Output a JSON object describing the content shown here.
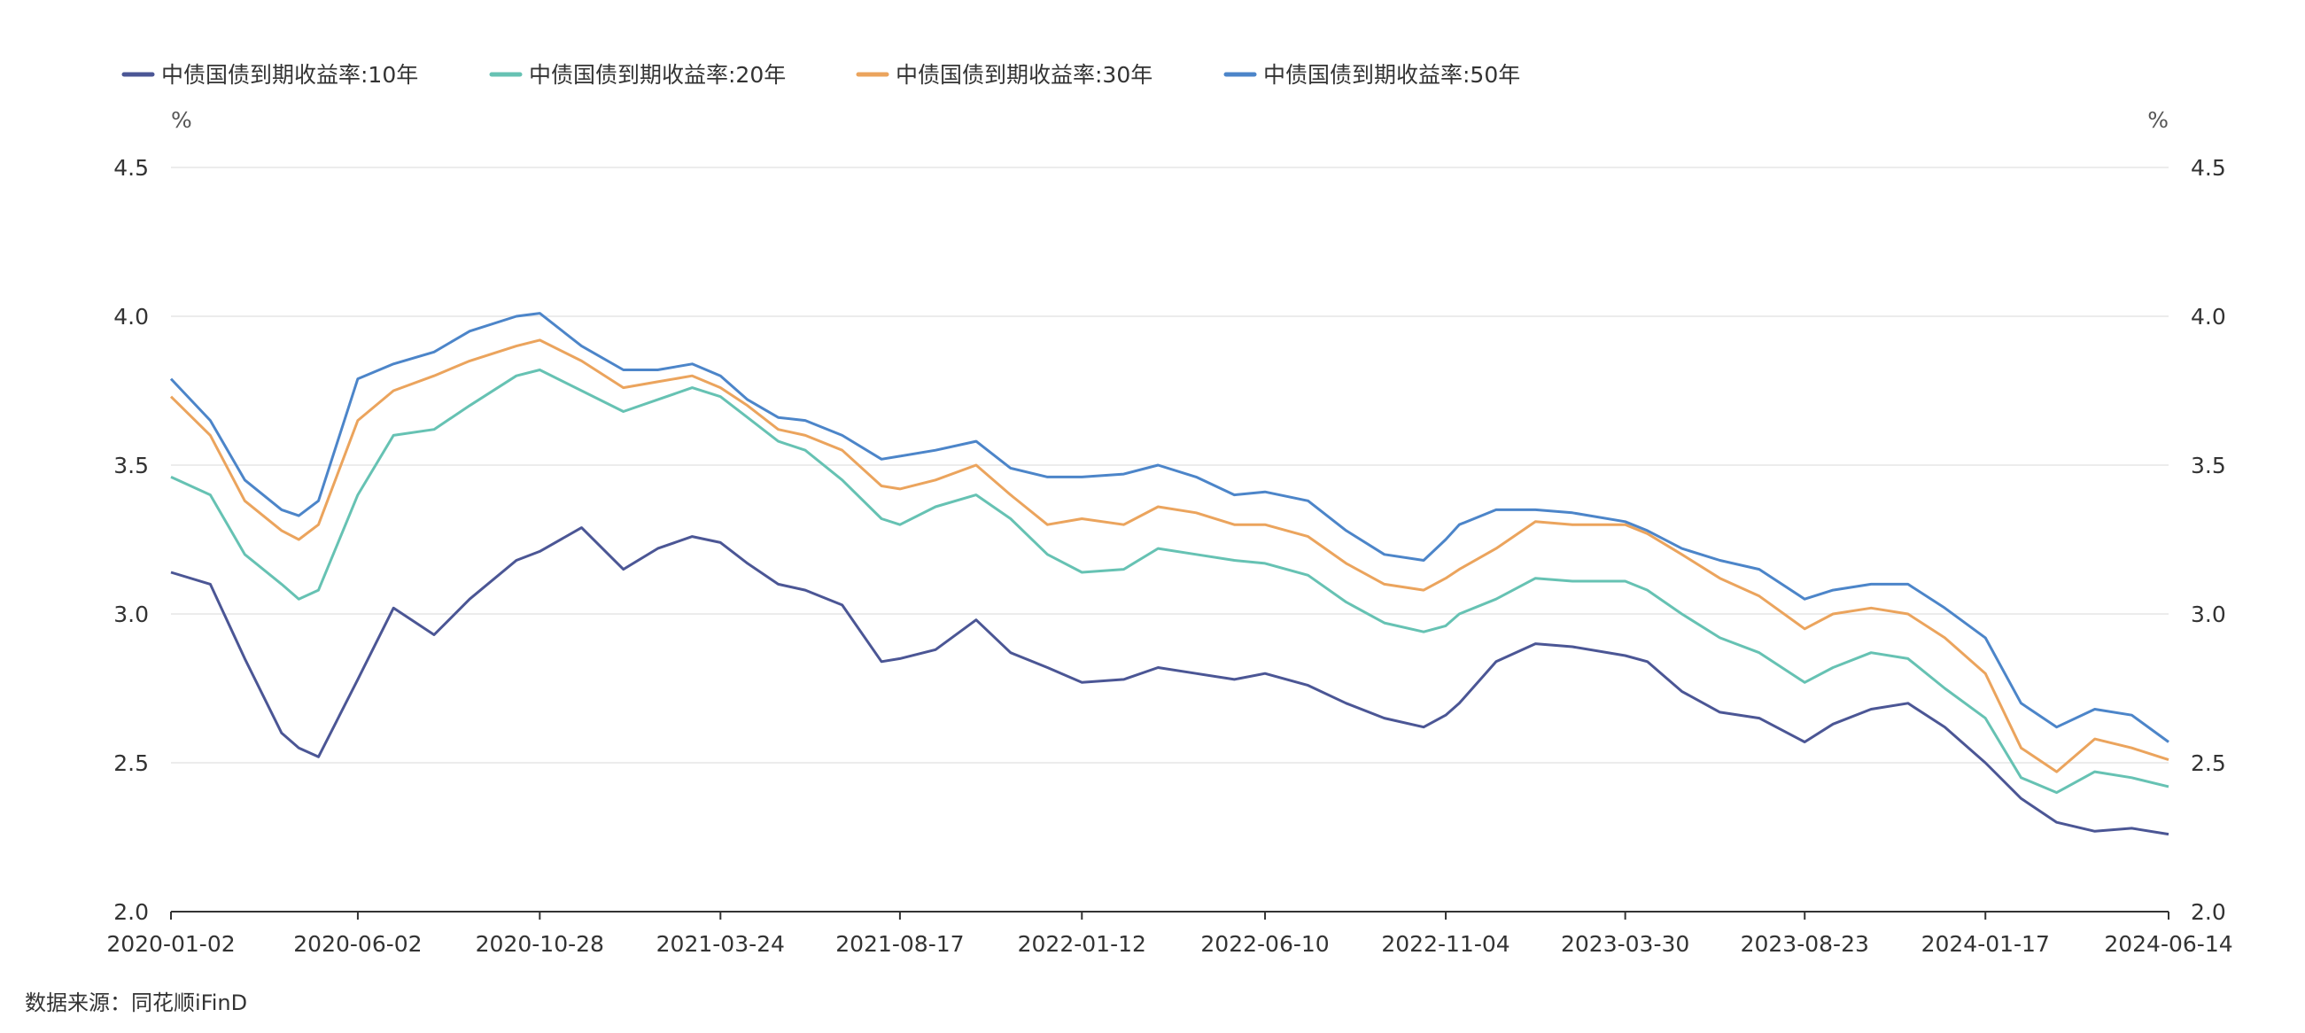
{
  "chart_data": {
    "type": "line",
    "unit_left": "%",
    "unit_right": "%",
    "ylim": [
      2.0,
      4.5
    ],
    "y_ticks": [
      "2.0",
      "2.5",
      "3.0",
      "3.5",
      "4.0",
      "4.5"
    ],
    "x_ticks": [
      "2020-01-02",
      "2020-06-02",
      "2020-10-28",
      "2021-03-24",
      "2021-08-17",
      "2022-01-12",
      "2022-06-10",
      "2022-11-04",
      "2023-03-30",
      "2023-08-23",
      "2024-01-17",
      "2024-06-14"
    ],
    "x_range": [
      "2020-01-02",
      "2024-06-14"
    ],
    "legend_position": "top-left",
    "grid": "horizontal",
    "x": [
      "2020-01-02",
      "2020-02-03",
      "2020-03-02",
      "2020-04-01",
      "2020-04-15",
      "2020-05-01",
      "2020-06-02",
      "2020-07-01",
      "2020-08-03",
      "2020-09-01",
      "2020-10-09",
      "2020-10-28",
      "2020-12-01",
      "2021-01-04",
      "2021-02-01",
      "2021-03-01",
      "2021-03-24",
      "2021-04-15",
      "2021-05-10",
      "2021-06-01",
      "2021-07-01",
      "2021-08-02",
      "2021-08-17",
      "2021-09-15",
      "2021-10-18",
      "2021-11-15",
      "2021-12-15",
      "2022-01-12",
      "2022-02-15",
      "2022-03-15",
      "2022-04-15",
      "2022-05-16",
      "2022-06-10",
      "2022-07-15",
      "2022-08-15",
      "2022-09-15",
      "2022-10-17",
      "2022-11-04",
      "2022-11-15",
      "2022-12-15",
      "2023-01-16",
      "2023-02-15",
      "2023-03-30",
      "2023-04-17",
      "2023-05-15",
      "2023-06-15",
      "2023-07-17",
      "2023-08-23",
      "2023-09-15",
      "2023-10-16",
      "2023-11-15",
      "2023-12-15",
      "2024-01-17",
      "2024-02-15",
      "2024-03-15",
      "2024-04-15",
      "2024-05-15",
      "2024-06-14"
    ],
    "series": [
      {
        "name": "中债国债到期收益率:10年",
        "color": "#4b5695",
        "values": [
          3.14,
          3.1,
          2.85,
          2.6,
          2.55,
          2.52,
          2.78,
          3.02,
          2.93,
          3.05,
          3.18,
          3.21,
          3.29,
          3.15,
          3.22,
          3.26,
          3.24,
          3.17,
          3.1,
          3.08,
          3.03,
          2.84,
          2.85,
          2.88,
          2.98,
          2.87,
          2.82,
          2.77,
          2.78,
          2.82,
          2.8,
          2.78,
          2.8,
          2.76,
          2.7,
          2.65,
          2.62,
          2.66,
          2.7,
          2.84,
          2.9,
          2.89,
          2.86,
          2.84,
          2.74,
          2.67,
          2.65,
          2.57,
          2.63,
          2.68,
          2.7,
          2.62,
          2.5,
          2.38,
          2.3,
          2.27,
          2.28,
          2.26
        ]
      },
      {
        "name": "中债国债到期收益率:20年",
        "color": "#66c2b3",
        "values": [
          3.46,
          3.4,
          3.2,
          3.1,
          3.05,
          3.08,
          3.4,
          3.6,
          3.62,
          3.7,
          3.8,
          3.82,
          3.75,
          3.68,
          3.72,
          3.76,
          3.73,
          3.66,
          3.58,
          3.55,
          3.45,
          3.32,
          3.3,
          3.36,
          3.4,
          3.32,
          3.2,
          3.14,
          3.15,
          3.22,
          3.2,
          3.18,
          3.17,
          3.13,
          3.04,
          2.97,
          2.94,
          2.96,
          3.0,
          3.05,
          3.12,
          3.11,
          3.11,
          3.08,
          3.0,
          2.92,
          2.87,
          2.77,
          2.82,
          2.87,
          2.85,
          2.75,
          2.65,
          2.45,
          2.4,
          2.47,
          2.45,
          2.42
        ]
      },
      {
        "name": "中债国债到期收益率:30年",
        "color": "#eba45d",
        "values": [
          3.73,
          3.6,
          3.38,
          3.28,
          3.25,
          3.3,
          3.65,
          3.75,
          3.8,
          3.85,
          3.9,
          3.92,
          3.85,
          3.76,
          3.78,
          3.8,
          3.76,
          3.7,
          3.62,
          3.6,
          3.55,
          3.43,
          3.42,
          3.45,
          3.5,
          3.4,
          3.3,
          3.32,
          3.3,
          3.36,
          3.34,
          3.3,
          3.3,
          3.26,
          3.17,
          3.1,
          3.08,
          3.12,
          3.15,
          3.22,
          3.31,
          3.3,
          3.3,
          3.27,
          3.2,
          3.12,
          3.06,
          2.95,
          3.0,
          3.02,
          3.0,
          2.92,
          2.8,
          2.55,
          2.47,
          2.58,
          2.55,
          2.51
        ]
      },
      {
        "name": "中债国债到期收益率:50年",
        "color": "#4c85c9",
        "values": [
          3.79,
          3.65,
          3.45,
          3.35,
          3.33,
          3.38,
          3.79,
          3.84,
          3.88,
          3.95,
          4.0,
          4.01,
          3.9,
          3.82,
          3.82,
          3.84,
          3.8,
          3.72,
          3.66,
          3.65,
          3.6,
          3.52,
          3.53,
          3.55,
          3.58,
          3.49,
          3.46,
          3.46,
          3.47,
          3.5,
          3.46,
          3.4,
          3.41,
          3.38,
          3.28,
          3.2,
          3.18,
          3.25,
          3.3,
          3.35,
          3.35,
          3.34,
          3.31,
          3.28,
          3.22,
          3.18,
          3.15,
          3.05,
          3.08,
          3.1,
          3.1,
          3.02,
          2.92,
          2.7,
          2.62,
          2.68,
          2.66,
          2.57
        ]
      }
    ]
  },
  "footer": {
    "source_label": "数据来源：同花顺iFinD"
  }
}
